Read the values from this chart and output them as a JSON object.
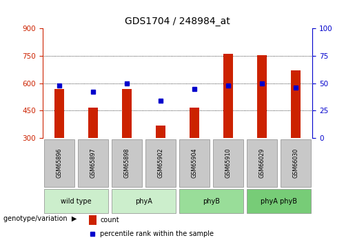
{
  "title": "GDS1704 / 248984_at",
  "samples": [
    "GSM65896",
    "GSM65897",
    "GSM65898",
    "GSM65902",
    "GSM65904",
    "GSM65910",
    "GSM66029",
    "GSM66030"
  ],
  "counts": [
    570,
    465,
    570,
    370,
    465,
    760,
    755,
    670
  ],
  "percentile_ranks": [
    48,
    42,
    50,
    34,
    45,
    48,
    50,
    46
  ],
  "groups": [
    {
      "label": "wild type",
      "indices": [
        0,
        1
      ],
      "color": "#cceecc"
    },
    {
      "label": "phyA",
      "indices": [
        2,
        3
      ],
      "color": "#cceecc"
    },
    {
      "label": "phyB",
      "indices": [
        4,
        5
      ],
      "color": "#99dd99"
    },
    {
      "label": "phyA phyB",
      "indices": [
        6,
        7
      ],
      "color": "#77cc77"
    }
  ],
  "ylim_left": [
    300,
    900
  ],
  "ylim_right": [
    0,
    100
  ],
  "yticks_left": [
    300,
    450,
    600,
    750,
    900
  ],
  "yticks_right": [
    0,
    25,
    50,
    75,
    100
  ],
  "bar_color": "#cc2200",
  "dot_color": "#0000cc",
  "left_tick_color": "#cc2200",
  "right_tick_color": "#0000cc",
  "xlabel_text": "genotype/variation",
  "legend_count": "count",
  "legend_pct": "percentile rank within the sample",
  "sample_bg_color": "#c8c8c8",
  "fig_bg": "#ffffff",
  "bar_width": 0.28
}
